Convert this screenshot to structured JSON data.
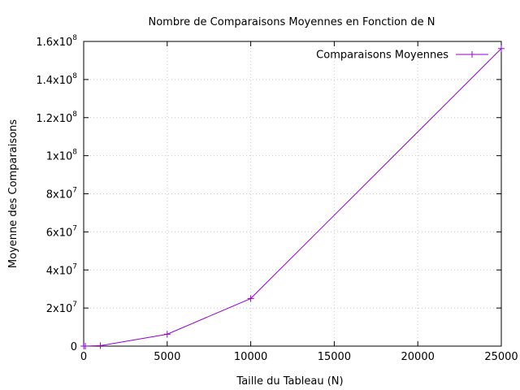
{
  "chart_data": {
    "type": "line",
    "title": "Nombre de Comparaisons Moyennes en Fonction de N",
    "xlabel": "Taille du Tableau (N)",
    "ylabel": "Moyenne des Comparaisons",
    "xlim": [
      0,
      25000
    ],
    "ylim": [
      0,
      160000000
    ],
    "x_ticks": [
      {
        "value": 0,
        "label": "0"
      },
      {
        "value": 5000,
        "label": "5000"
      },
      {
        "value": 10000,
        "label": "10000"
      },
      {
        "value": 15000,
        "label": "15000"
      },
      {
        "value": 20000,
        "label": "20000"
      },
      {
        "value": 25000,
        "label": "25000"
      }
    ],
    "y_ticks": [
      {
        "value": 0,
        "mantissa": "0",
        "exponent": ""
      },
      {
        "value": 20000000,
        "mantissa": "2x10",
        "exponent": "7"
      },
      {
        "value": 40000000,
        "mantissa": "4x10",
        "exponent": "7"
      },
      {
        "value": 60000000,
        "mantissa": "6x10",
        "exponent": "7"
      },
      {
        "value": 80000000,
        "mantissa": "8x10",
        "exponent": "7"
      },
      {
        "value": 100000000,
        "mantissa": "1x10",
        "exponent": "8"
      },
      {
        "value": 120000000,
        "mantissa": "1.2x10",
        "exponent": "8"
      },
      {
        "value": 140000000,
        "mantissa": "1.4x10",
        "exponent": "8"
      },
      {
        "value": 160000000,
        "mantissa": "1.6x10",
        "exponent": "8"
      }
    ],
    "grid": true,
    "legend_position": "top-right",
    "series": [
      {
        "name": "Comparaisons Moyennes",
        "color": "#9400d3",
        "marker": "plus",
        "x": [
          10,
          100,
          1000,
          5000,
          10000,
          25000
        ],
        "y": [
          25,
          2500,
          250000,
          6250000,
          25000000,
          156250000
        ]
      }
    ]
  }
}
